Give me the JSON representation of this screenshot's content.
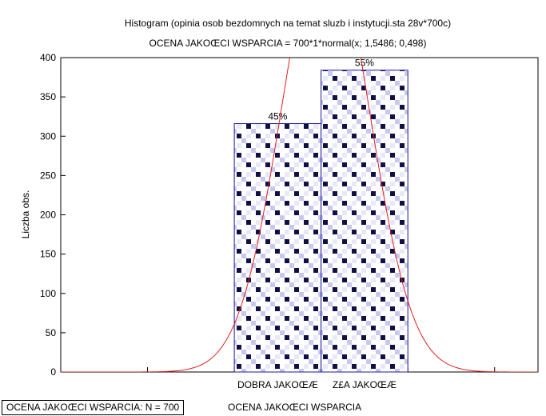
{
  "chart_data": {
    "type": "bar",
    "title": "Histogram (opinia osob bezdomnych na temat sluzb i instytucji.sta 28v*700c)",
    "subtitle": "OCENA JAKOŒCI WSPARCIA = 700*1*normal(x; 1,5486; 0,498)",
    "ylabel": "Liczba obs.",
    "xlabel": "OCENA JAKOŒCI WSPARCIA",
    "ylim": [
      0,
      400
    ],
    "yticks": [
      "0",
      "50",
      "100",
      "150",
      "200",
      "250",
      "300",
      "350",
      "400"
    ],
    "categories": [
      "DOBRA JAKOŒÆ",
      "Z£A JAKOŒÆ"
    ],
    "values": [
      316,
      384
    ],
    "data_labels": [
      "45%",
      "55%"
    ],
    "normal_fit": {
      "n": 700,
      "mean": 1.5486,
      "sd": 0.498
    },
    "grid": false,
    "bar_border_color": "#1a1aa0",
    "pattern_dark": "#101046",
    "pattern_light": "#c8c8ee",
    "curve_color": "#e02020"
  },
  "footer": {
    "stats": "OCENA JAKOŒCI WSPARCIA:  N = 700"
  }
}
